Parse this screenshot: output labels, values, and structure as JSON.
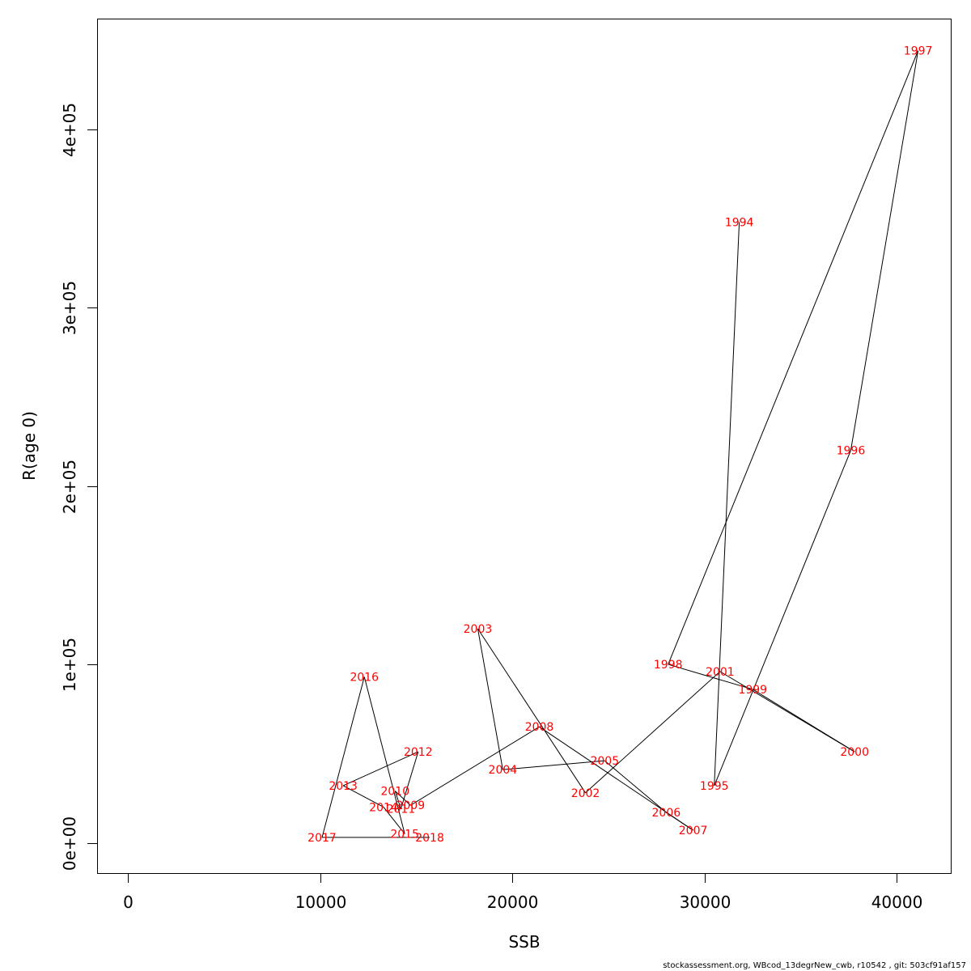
{
  "chart_data": {
    "type": "scatter",
    "xlabel": "SSB",
    "ylabel": "R(age 0)",
    "xlim": [
      -1600,
      42800
    ],
    "ylim": [
      -17000,
      462000
    ],
    "x_ticks": [
      0,
      10000,
      20000,
      30000,
      40000
    ],
    "x_tick_labels": [
      "0",
      "10000",
      "20000",
      "30000",
      "40000"
    ],
    "y_ticks": [
      0,
      100000,
      200000,
      300000,
      400000
    ],
    "y_tick_labels": [
      "0e+00",
      "1e+05",
      "2e+05",
      "3e+05",
      "4e+05"
    ],
    "grid": false,
    "line_color": "#000000",
    "label_color": "#ff0000",
    "points": [
      {
        "year": "1994",
        "x": 31800,
        "y": 348000
      },
      {
        "year": "1995",
        "x": 30500,
        "y": 32000
      },
      {
        "year": "1996",
        "x": 37600,
        "y": 220000
      },
      {
        "year": "1997",
        "x": 41100,
        "y": 444000
      },
      {
        "year": "1998",
        "x": 28100,
        "y": 100000
      },
      {
        "year": "1999",
        "x": 32500,
        "y": 86000
      },
      {
        "year": "2000",
        "x": 37800,
        "y": 51000
      },
      {
        "year": "2001",
        "x": 30800,
        "y": 96000
      },
      {
        "year": "2002",
        "x": 23800,
        "y": 28000
      },
      {
        "year": "2003",
        "x": 18200,
        "y": 120000
      },
      {
        "year": "2004",
        "x": 19500,
        "y": 41000
      },
      {
        "year": "2005",
        "x": 24800,
        "y": 46000
      },
      {
        "year": "2006",
        "x": 28000,
        "y": 17000
      },
      {
        "year": "2007",
        "x": 29400,
        "y": 7000
      },
      {
        "year": "2008",
        "x": 21400,
        "y": 65000
      },
      {
        "year": "2009",
        "x": 14700,
        "y": 21000
      },
      {
        "year": "2010",
        "x": 13900,
        "y": 29000
      },
      {
        "year": "2011",
        "x": 14200,
        "y": 19000
      },
      {
        "year": "2012",
        "x": 15100,
        "y": 51000
      },
      {
        "year": "2013",
        "x": 11200,
        "y": 32000
      },
      {
        "year": "2014",
        "x": 13300,
        "y": 20000
      },
      {
        "year": "2015",
        "x": 14400,
        "y": 5000
      },
      {
        "year": "2016",
        "x": 12300,
        "y": 93000
      },
      {
        "year": "2017",
        "x": 10100,
        "y": 3000
      },
      {
        "year": "2018",
        "x": 15700,
        "y": 3000
      }
    ]
  },
  "footer": {
    "text": "stockassessment.org, WBcod_13degrNew_cwb, r10542 , git: 503cf91af157"
  }
}
